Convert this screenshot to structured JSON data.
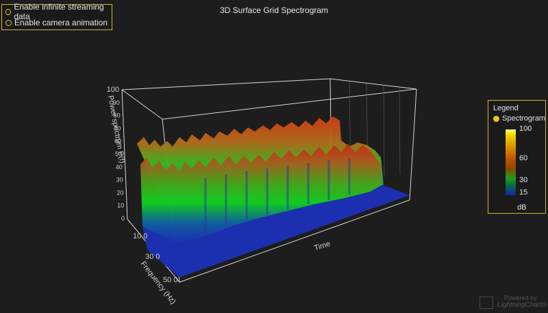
{
  "title": "3D Surface Grid Spectrogram",
  "options": {
    "infinite_label": "Enable infinite streaming data",
    "camera_label": "Enable camera animation"
  },
  "axes": {
    "y_title": "Power spectrum P(f)",
    "y_ticks": [
      "0",
      "10",
      "20",
      "30",
      "40",
      "50",
      "60",
      "70",
      "80",
      "90",
      "100"
    ],
    "z_title": "Frequency (Hz)",
    "z_ticks": [
      "10 0",
      "30 0",
      "50 0"
    ],
    "x_title": "Time"
  },
  "legend": {
    "title": "Legend",
    "series_name": "Spectrogram",
    "gradient_labels": [
      "100",
      "60",
      "30",
      "15"
    ],
    "unit": "dB"
  },
  "watermark": {
    "powered": "Powered by",
    "brand": "LightningChart®"
  },
  "colors": {
    "background": "#1d1d1d",
    "panel_border": "#d9b233",
    "axis_lines": "#d0d0d0",
    "high": "#ffff00",
    "mid": "#c04000",
    "low_green": "#00c000",
    "low_blue": "#1030b0"
  }
}
